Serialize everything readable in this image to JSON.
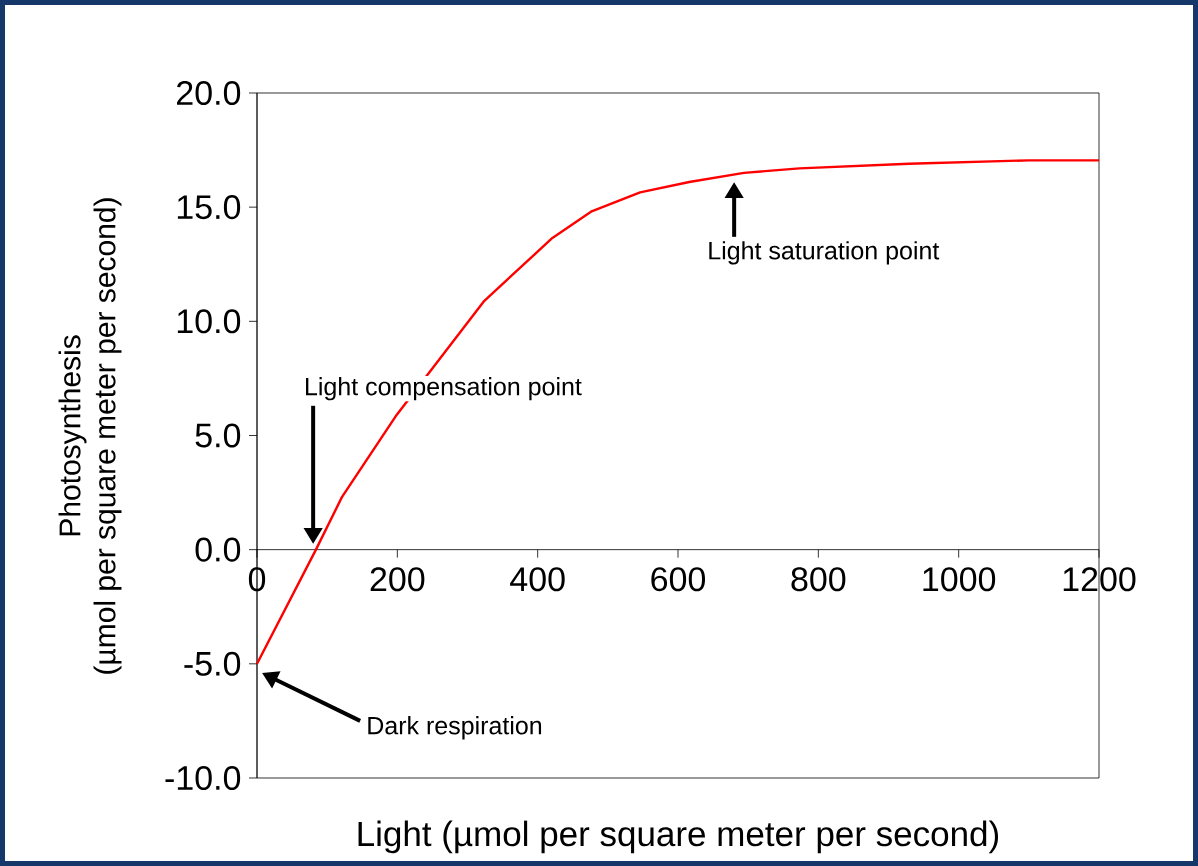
{
  "chart_data": {
    "type": "line",
    "xlabel": "Light (µmol per square meter per second)",
    "ylabel": "Photosynthesis\n(µmol per square meter per second)",
    "x": [
      0,
      84,
      121,
      199,
      269,
      324,
      421,
      476,
      546,
      616,
      694,
      773,
      929,
      1100,
      1200
    ],
    "series": [
      {
        "color": "#ff0000",
        "values": [
          -5.0,
          0.0,
          2.3,
          5.9,
          8.7,
          10.9,
          13.65,
          14.8,
          15.65,
          16.1,
          16.5,
          16.7,
          16.9,
          17.05,
          17.05
        ]
      }
    ],
    "xlim": [
      0,
      1200
    ],
    "ylim": [
      -10,
      20
    ],
    "xticks": [
      0,
      200,
      400,
      600,
      800,
      1000,
      1200
    ],
    "yticks": [
      {
        "value": -10,
        "label": "-10.0"
      },
      {
        "value": -5,
        "label": "-5.0"
      },
      {
        "value": 0,
        "label": "0.0"
      },
      {
        "value": 5,
        "label": "5.0"
      },
      {
        "value": 10,
        "label": "10.0"
      },
      {
        "value": 15,
        "label": "15.0"
      },
      {
        "value": 20,
        "label": "20.0"
      }
    ],
    "annotations": [
      "Dark respiration",
      "Light compensation point",
      "Light saturation point"
    ]
  }
}
